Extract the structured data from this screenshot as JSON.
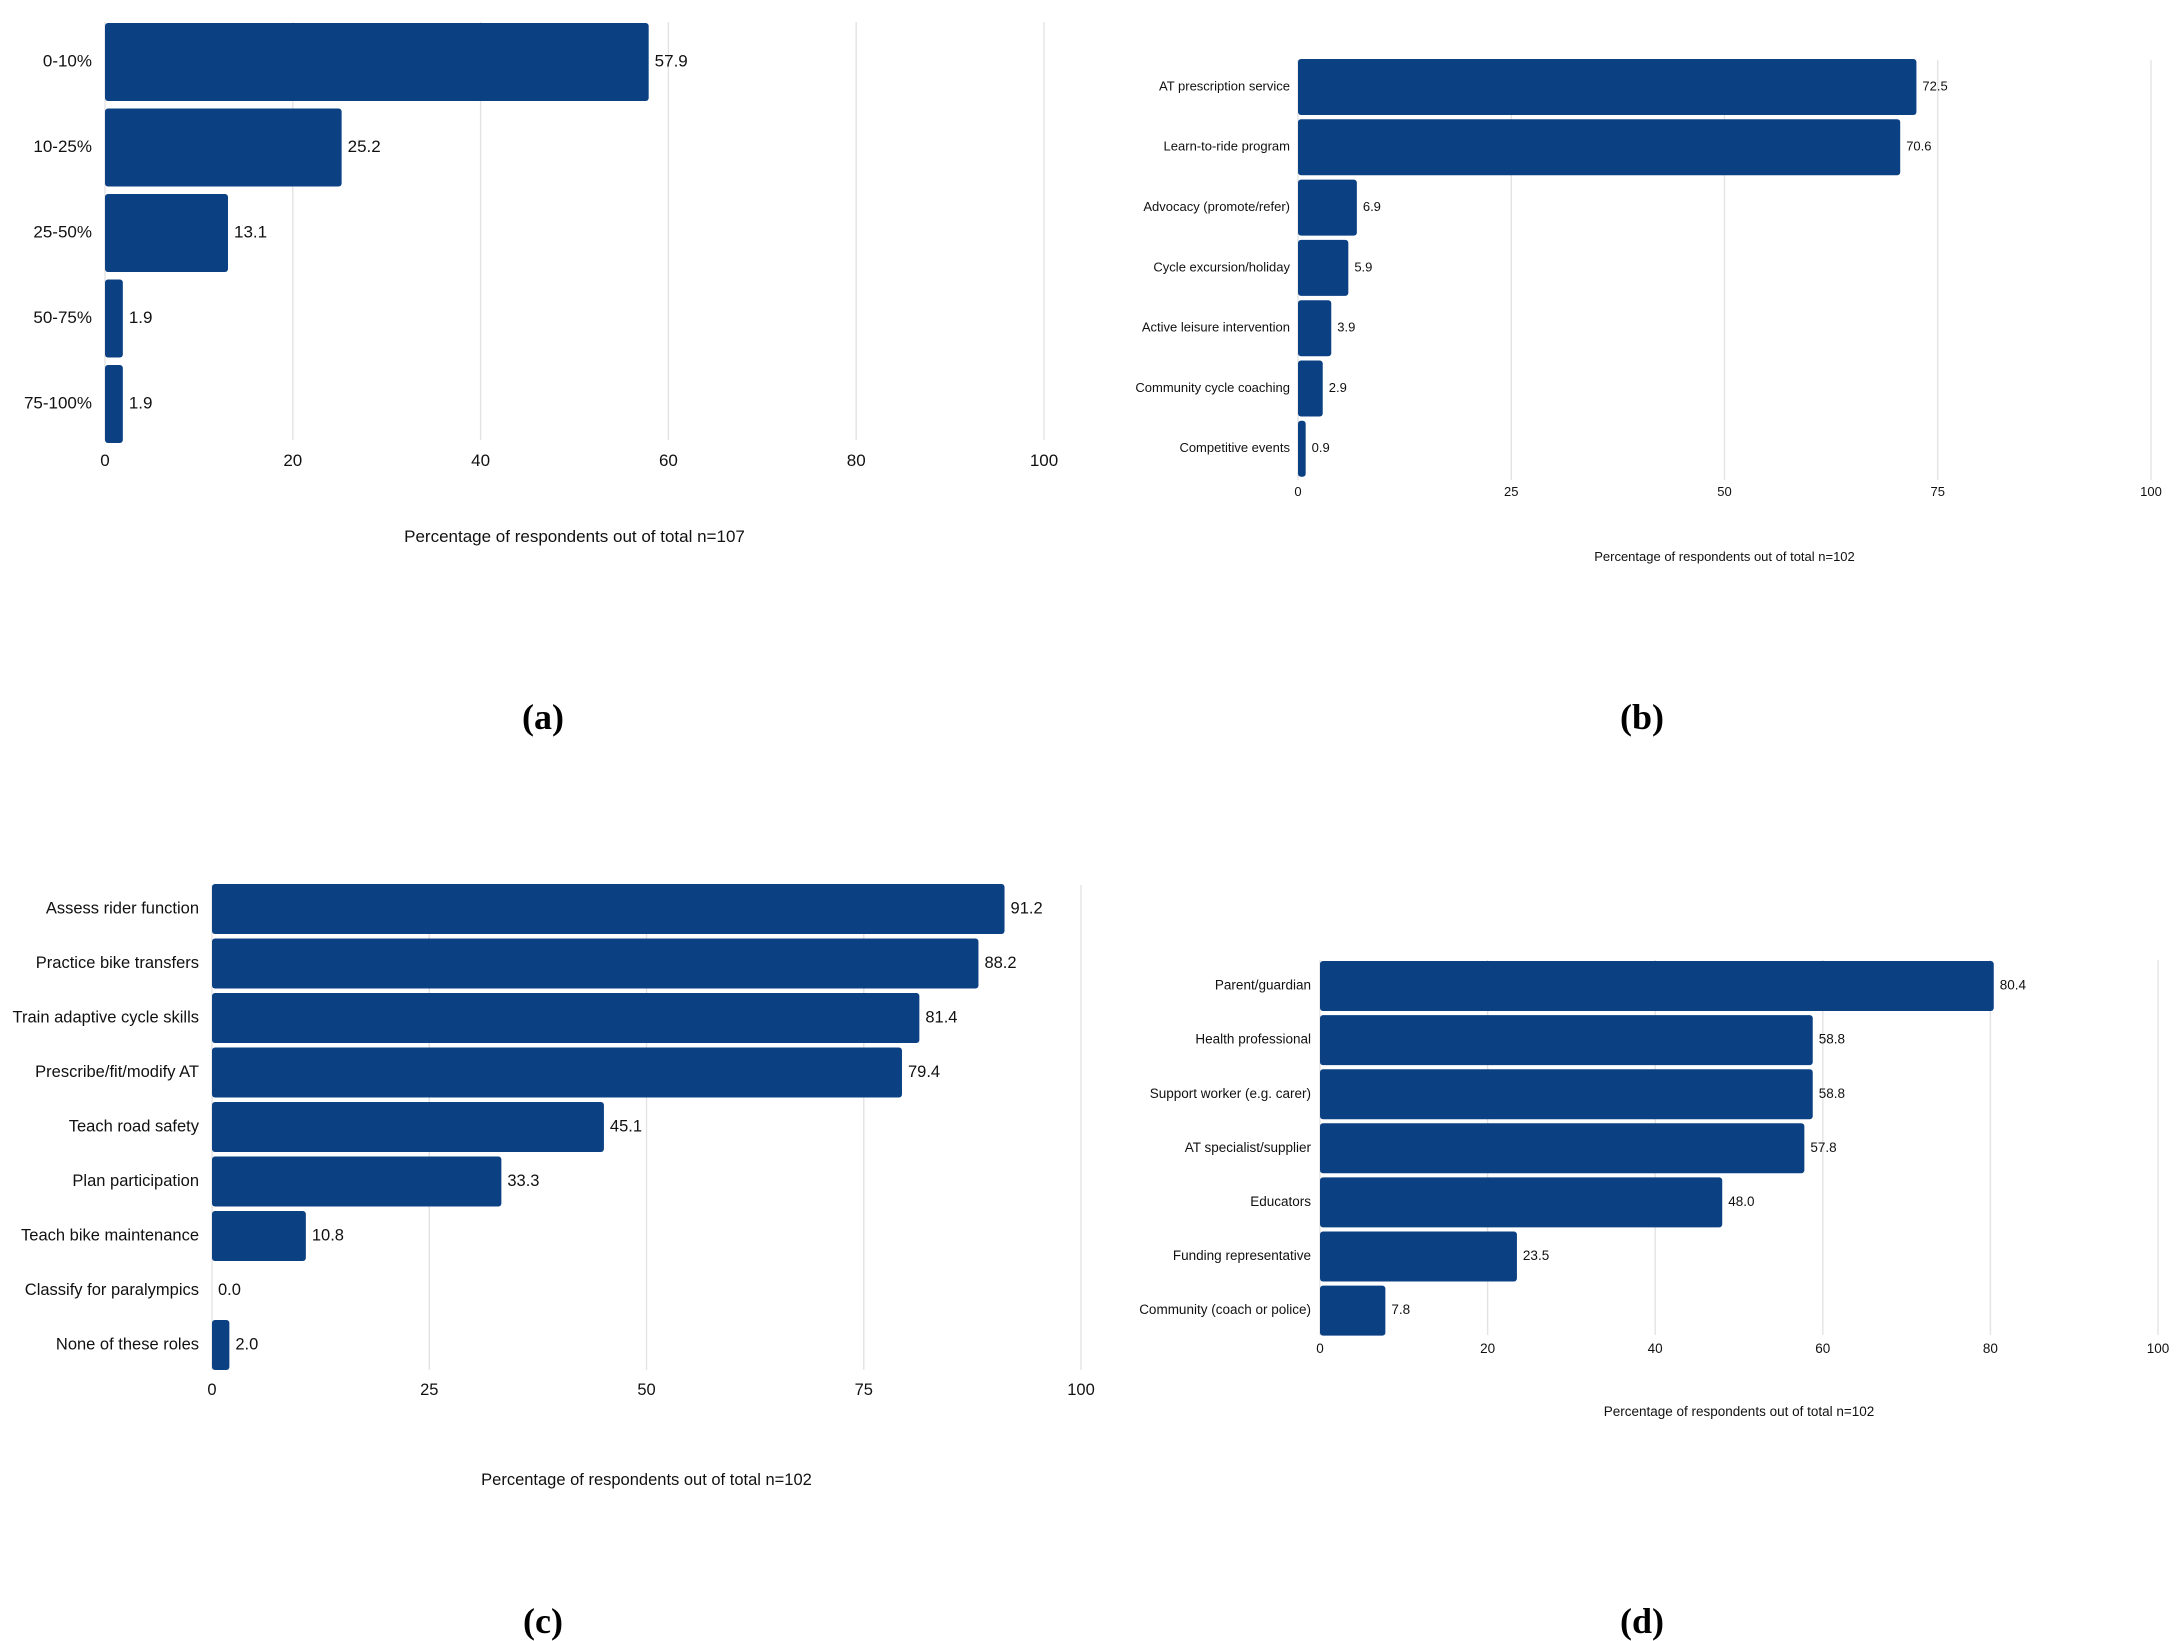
{
  "chart_data": [
    {
      "panel_label": "(a)",
      "type": "bar",
      "orientation": "horizontal",
      "categories": [
        "0-10%",
        "10-25%",
        "25-50%",
        "50-75%",
        "75-100%"
      ],
      "values": [
        57.9,
        25.2,
        13.1,
        1.9,
        1.9
      ],
      "value_labels": [
        "57.9",
        "25.2",
        "13.1",
        "1.9",
        "1.9"
      ],
      "xlabel": "Percentage of respondents out of total n=107",
      "xlim": [
        0,
        100
      ],
      "xticks": [
        0,
        20,
        40,
        60,
        80,
        100
      ],
      "grid": true,
      "bar_color": "#0b4183"
    },
    {
      "panel_label": "(b)",
      "type": "bar",
      "orientation": "horizontal",
      "categories": [
        "AT prescription service",
        "Learn-to-ride program",
        "Advocacy (promote/refer)",
        "Cycle excursion/holiday",
        "Active leisure intervention",
        "Community cycle coaching",
        "Competitive events"
      ],
      "values": [
        72.5,
        70.6,
        6.9,
        5.9,
        3.9,
        2.9,
        0.9
      ],
      "value_labels": [
        "72.5",
        "70.6",
        "6.9",
        "5.9",
        "3.9",
        "2.9",
        "0.9"
      ],
      "xlabel": "Percentage of respondents out of total n=102",
      "xlim": [
        0,
        100
      ],
      "xticks": [
        0,
        25,
        50,
        75,
        100
      ],
      "grid": true,
      "bar_color": "#0b4183"
    },
    {
      "panel_label": "(c)",
      "type": "bar",
      "orientation": "horizontal",
      "categories": [
        "Assess rider function",
        "Practice bike transfers",
        "Train adaptive cycle skills",
        "Prescribe/fit/modify AT",
        "Teach road safety",
        "Plan participation",
        "Teach bike maintenance",
        "Classify for paralympics",
        "None of these roles"
      ],
      "values": [
        91.2,
        88.2,
        81.4,
        79.4,
        45.1,
        33.3,
        10.8,
        0.0,
        2.0
      ],
      "value_labels": [
        "91.2",
        "88.2",
        "81.4",
        "79.4",
        "45.1",
        "33.3",
        "10.8",
        "0.0",
        "2.0"
      ],
      "xlabel": "Percentage of respondents out of total n=102",
      "xlim": [
        0,
        100
      ],
      "xticks": [
        0,
        25,
        50,
        75,
        100
      ],
      "grid": true,
      "bar_color": "#0b4183"
    },
    {
      "panel_label": "(d)",
      "type": "bar",
      "orientation": "horizontal",
      "categories": [
        "Parent/guardian",
        "Health professional",
        "Support worker (e.g. carer)",
        "AT specialist/supplier",
        "Educators",
        "Funding representative",
        "Community (coach or police)"
      ],
      "values": [
        80.4,
        58.8,
        58.8,
        57.8,
        48.0,
        23.5,
        7.8
      ],
      "value_labels": [
        "80.4",
        "58.8",
        "58.8",
        "57.8",
        "48.0",
        "23.5",
        "7.8"
      ],
      "xlabel": "Percentage of respondents out of total n=102",
      "xlim": [
        0,
        100
      ],
      "xticks": [
        0,
        20,
        40,
        60,
        80,
        100
      ],
      "grid": true,
      "bar_color": "#0b4183"
    }
  ]
}
